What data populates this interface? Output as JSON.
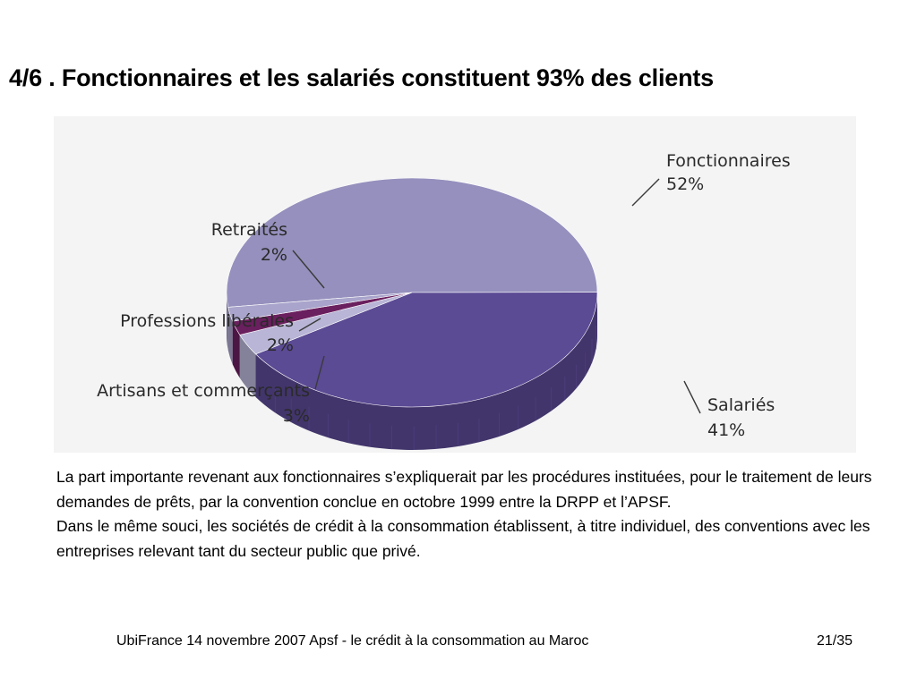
{
  "slide": {
    "title": "4/6 . Fonctionnaires et les salariés constituent 93% des clients",
    "paragraphs": [
      "La part importante revenant aux fonctionnaires s’expliquerait par les procédures instituées, pour le traitement de leurs demandes de prêts, par la convention conclue en octobre 1999 entre la DRPP et l’APSF.",
      "Dans le même souci, les sociétés de crédit à la consommation établissent, à titre individuel, des conventions avec les entreprises relevant tant du secteur public que privé."
    ],
    "footer_text": "UbiFrance 14 novembre 2007  Apsf - le crédit à la consommation au Maroc",
    "page_number": "21/35"
  },
  "chart_data": {
    "type": "pie",
    "style": "3d",
    "title": "",
    "slices": [
      {
        "name": "Fonctionnaires",
        "label": "52%",
        "value": 52,
        "color": "#9590bd"
      },
      {
        "name": "Salariés",
        "label": "41%",
        "value": 41,
        "color": "#5b4a94"
      },
      {
        "name": "Artisans et commerçants",
        "label": "3%",
        "value": 3,
        "color": "#b8b5d6"
      },
      {
        "name": "Professions libérales",
        "label": "2%",
        "value": 2,
        "color": "#6a1f5e"
      },
      {
        "name": "Retraités",
        "label": "2%",
        "value": 2,
        "color": "#a9a4cb"
      }
    ],
    "background": "#f4f4f4"
  }
}
